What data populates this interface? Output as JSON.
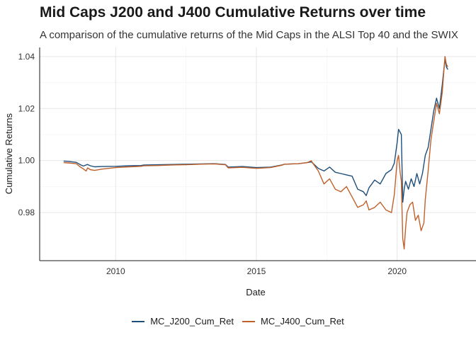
{
  "chart_data": {
    "type": "line",
    "title": "Mid Caps J200 and J400 Cumulative Returns over time",
    "subtitle": "A comparison of the cumulative returns of the Mid Caps in the ALSI Top 40 and the SWIX",
    "xlabel": "Date",
    "ylabel": "Cumulative Returns",
    "xlim": [
      2007.3,
      2022.6
    ],
    "ylim": [
      0.9615,
      1.0435
    ],
    "x_ticks": [
      2010,
      2015,
      2020
    ],
    "x_tick_labels": [
      "2010",
      "2015",
      "2020"
    ],
    "y_ticks": [
      0.98,
      1.0,
      1.02,
      1.04
    ],
    "y_tick_labels": [
      "0.98",
      "1.00",
      "1.02",
      "1.04"
    ],
    "grid": true,
    "legend_position": "bottom",
    "series": [
      {
        "name": "MC_J200_Cum_Ret",
        "color": "#1f4e79",
        "x": [
          2008.15,
          2008.3,
          2008.6,
          2008.75,
          2008.85,
          2009.0,
          2009.1,
          2009.25,
          2009.5,
          2010.0,
          2010.5,
          2010.9,
          2011.0,
          2011.5,
          2012.0,
          2012.5,
          2013.0,
          2013.5,
          2013.9,
          2014.0,
          2014.5,
          2015.0,
          2015.5,
          2015.9,
          2016.0,
          2016.5,
          2016.8,
          2016.95,
          2017.0,
          2017.2,
          2017.4,
          2017.6,
          2017.8,
          2018.0,
          2018.2,
          2018.4,
          2018.6,
          2018.8,
          2018.9,
          2019.0,
          2019.2,
          2019.4,
          2019.6,
          2019.8,
          2019.9,
          2020.0,
          2020.05,
          2020.1,
          2020.15,
          2020.2,
          2020.25,
          2020.3,
          2020.4,
          2020.5,
          2020.6,
          2020.7,
          2020.8,
          2020.9,
          2021.0,
          2021.1,
          2021.2,
          2021.3,
          2021.4,
          2021.5,
          2021.6,
          2021.7,
          2021.75,
          2021.8
        ],
        "y": [
          0.9998,
          0.9997,
          0.9993,
          0.9984,
          0.9979,
          0.9985,
          0.998,
          0.9976,
          0.9977,
          0.9978,
          0.998,
          0.9981,
          0.9983,
          0.9984,
          0.9985,
          0.9986,
          0.9987,
          0.9988,
          0.9985,
          0.9975,
          0.9977,
          0.9973,
          0.9975,
          0.9983,
          0.9986,
          0.9988,
          0.9992,
          0.9995,
          0.999,
          0.997,
          0.996,
          0.9975,
          0.9955,
          0.995,
          0.9945,
          0.994,
          0.989,
          0.988,
          0.9865,
          0.9895,
          0.9925,
          0.991,
          0.995,
          0.9965,
          0.999,
          1.007,
          1.012,
          1.011,
          1.01,
          0.984,
          0.989,
          0.992,
          0.989,
          0.993,
          0.99,
          0.995,
          0.991,
          0.995,
          1.002,
          1.005,
          1.012,
          1.019,
          1.024,
          1.02,
          1.029,
          1.039,
          1.036,
          1.035
        ]
      },
      {
        "name": "MC_J400_Cum_Ret",
        "color": "#c0612b",
        "x": [
          2008.15,
          2008.3,
          2008.6,
          2008.75,
          2008.85,
          2008.95,
          2009.0,
          2009.1,
          2009.25,
          2009.5,
          2010.0,
          2010.5,
          2010.9,
          2011.0,
          2011.5,
          2012.0,
          2012.5,
          2013.0,
          2013.5,
          2013.9,
          2014.0,
          2014.5,
          2015.0,
          2015.5,
          2015.9,
          2016.0,
          2016.5,
          2016.8,
          2016.95,
          2017.0,
          2017.2,
          2017.4,
          2017.6,
          2017.8,
          2018.0,
          2018.2,
          2018.4,
          2018.6,
          2018.8,
          2018.9,
          2019.0,
          2019.2,
          2019.4,
          2019.6,
          2019.8,
          2019.9,
          2020.0,
          2020.05,
          2020.1,
          2020.15,
          2020.2,
          2020.25,
          2020.3,
          2020.35,
          2020.45,
          2020.55,
          2020.65,
          2020.75,
          2020.85,
          2020.95,
          2021.0,
          2021.1,
          2021.2,
          2021.3,
          2021.4,
          2021.5,
          2021.6,
          2021.7,
          2021.75,
          2021.8
        ],
        "y": [
          0.9992,
          0.9991,
          0.9988,
          0.9975,
          0.9968,
          0.996,
          0.9972,
          0.9965,
          0.9962,
          0.9967,
          0.9973,
          0.9976,
          0.9978,
          0.998,
          0.9981,
          0.9983,
          0.9984,
          0.9986,
          0.9987,
          0.9984,
          0.9972,
          0.9974,
          0.997,
          0.9973,
          0.9982,
          0.9986,
          0.9988,
          0.9992,
          0.9999,
          0.999,
          0.996,
          0.991,
          0.993,
          0.989,
          0.988,
          0.99,
          0.986,
          0.982,
          0.983,
          0.9845,
          0.981,
          0.982,
          0.984,
          0.981,
          0.98,
          0.987,
          1.0,
          1.002,
          0.996,
          0.992,
          0.97,
          0.966,
          0.974,
          0.98,
          0.983,
          0.984,
          0.977,
          0.979,
          0.973,
          0.976,
          0.985,
          0.996,
          1.008,
          1.015,
          1.022,
          1.018,
          1.026,
          1.04,
          1.037,
          1.036
        ]
      }
    ]
  }
}
